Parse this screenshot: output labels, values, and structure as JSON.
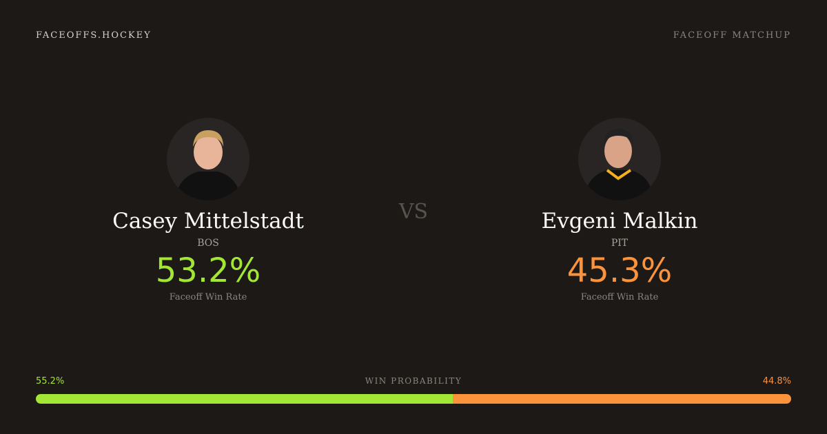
{
  "header": {
    "brand": "FACEOFFS.HOCKEY",
    "mode": "FACEOFF MATCHUP"
  },
  "vs": "VS",
  "players": [
    {
      "name": "Casey Mittelstadt",
      "team": "BOS",
      "win_rate": "53.2%",
      "win_rate_label": "Faceoff Win Rate",
      "color": "#a3e635"
    },
    {
      "name": "Evgeni Malkin",
      "team": "PIT",
      "win_rate": "45.3%",
      "win_rate_label": "Faceoff Win Rate",
      "color": "#fb923c"
    }
  ],
  "win_probability": {
    "title": "WIN PROBABILITY",
    "left": "55.2%",
    "right": "44.8%",
    "left_value": 55.2,
    "right_value": 44.8
  }
}
